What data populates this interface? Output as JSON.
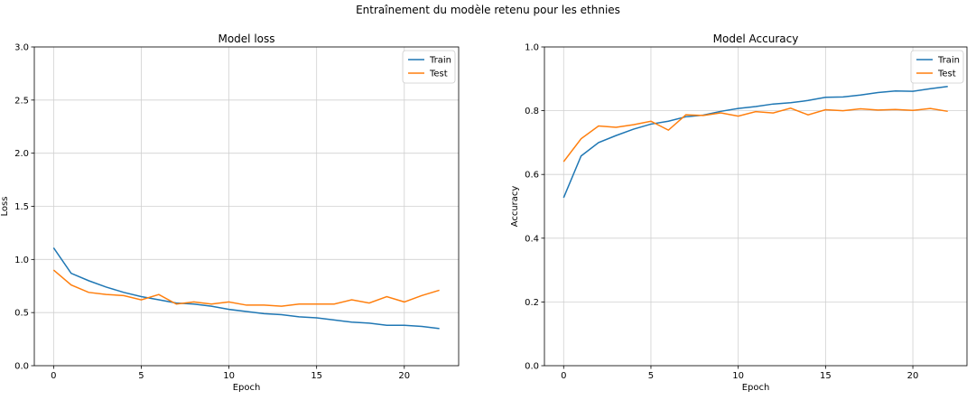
{
  "figure": {
    "suptitle": "Entraînement du modèle retenu pour les ethnies"
  },
  "chart_data": [
    {
      "type": "line",
      "title": "Model loss",
      "xlabel": "Epoch",
      "ylabel": "Loss",
      "xlim": [
        -1.1,
        23.1
      ],
      "ylim": [
        0,
        3.0
      ],
      "xticks": [
        0,
        5,
        10,
        15,
        20
      ],
      "yticks": [
        0.0,
        0.5,
        1.0,
        1.5,
        2.0,
        2.5,
        3.0
      ],
      "ytick_labels": [
        "0.0",
        "0.5",
        "1.0",
        "1.5",
        "2.0",
        "2.5",
        "3.0"
      ],
      "grid": true,
      "legend_position": "top-right",
      "x": [
        0,
        1,
        2,
        3,
        4,
        5,
        6,
        7,
        8,
        9,
        10,
        11,
        12,
        13,
        14,
        15,
        16,
        17,
        18,
        19,
        20,
        21,
        22
      ],
      "series": [
        {
          "name": "Train",
          "color": "#1f77b4",
          "values": [
            1.11,
            0.87,
            0.8,
            0.74,
            0.69,
            0.65,
            0.62,
            0.59,
            0.58,
            0.56,
            0.53,
            0.51,
            0.49,
            0.48,
            0.46,
            0.45,
            0.43,
            0.41,
            0.4,
            0.38,
            0.38,
            0.37,
            0.35
          ]
        },
        {
          "name": "Test",
          "color": "#ff7f0e",
          "values": [
            0.9,
            0.76,
            0.69,
            0.67,
            0.66,
            0.62,
            0.67,
            0.58,
            0.6,
            0.58,
            0.6,
            0.57,
            0.57,
            0.56,
            0.58,
            0.58,
            0.58,
            0.62,
            0.59,
            0.65,
            0.6,
            0.66,
            0.71
          ]
        }
      ]
    },
    {
      "type": "line",
      "title": "Model Accuracy",
      "xlabel": "Epoch",
      "ylabel": "Accuracy",
      "xlim": [
        -1.1,
        23.1
      ],
      "ylim": [
        0,
        1.0
      ],
      "xticks": [
        0,
        5,
        10,
        15,
        20
      ],
      "yticks": [
        0.0,
        0.2,
        0.4,
        0.6,
        0.8,
        1.0
      ],
      "ytick_labels": [
        "0.0",
        "0.2",
        "0.4",
        "0.6",
        "0.8",
        "1.0"
      ],
      "grid": true,
      "legend_position": "top-right",
      "x": [
        0,
        1,
        2,
        3,
        4,
        5,
        6,
        7,
        8,
        9,
        10,
        11,
        12,
        13,
        14,
        15,
        16,
        17,
        18,
        19,
        20,
        21,
        22
      ],
      "series": [
        {
          "name": "Train",
          "color": "#1f77b4",
          "values": [
            0.527,
            0.658,
            0.7,
            0.722,
            0.742,
            0.758,
            0.767,
            0.781,
            0.786,
            0.798,
            0.807,
            0.813,
            0.821,
            0.825,
            0.832,
            0.842,
            0.843,
            0.849,
            0.857,
            0.862,
            0.861,
            0.869,
            0.876
          ]
        },
        {
          "name": "Test",
          "color": "#ff7f0e",
          "values": [
            0.64,
            0.712,
            0.752,
            0.748,
            0.756,
            0.767,
            0.739,
            0.787,
            0.785,
            0.793,
            0.783,
            0.797,
            0.793,
            0.808,
            0.787,
            0.803,
            0.8,
            0.806,
            0.802,
            0.804,
            0.801,
            0.807,
            0.798
          ]
        }
      ]
    }
  ]
}
